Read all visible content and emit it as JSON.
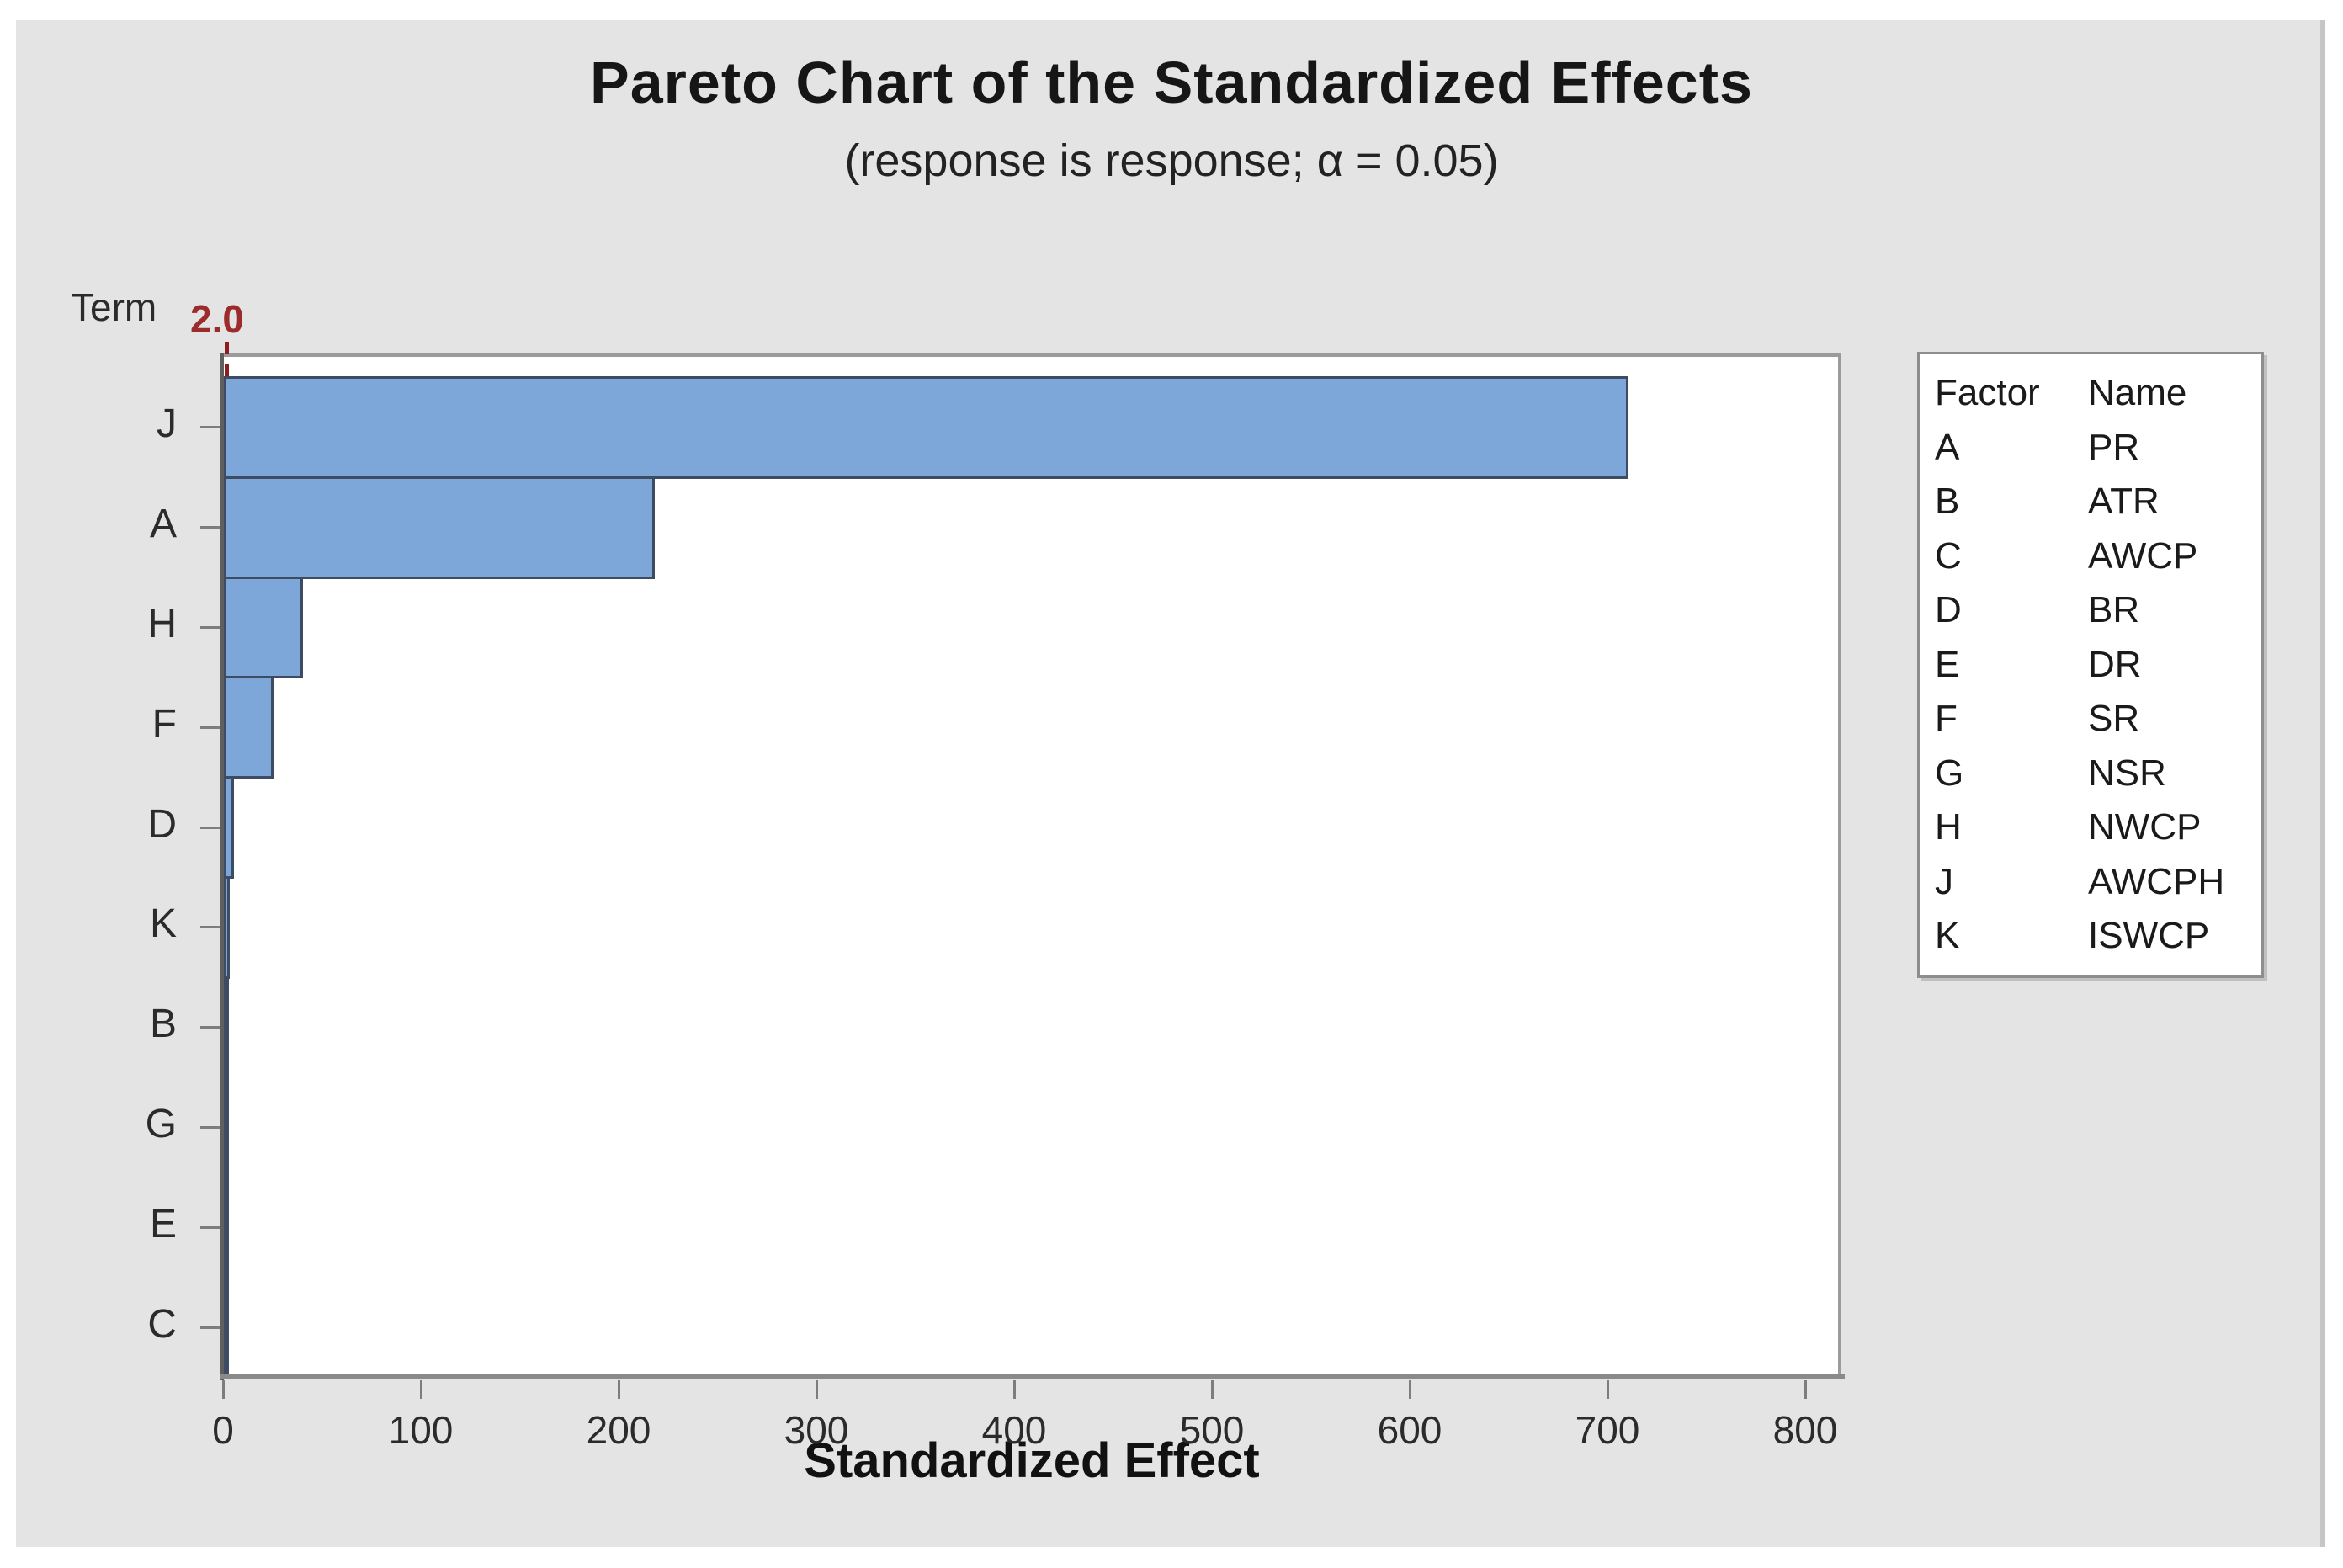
{
  "figure": {
    "title": "Pareto Chart of the Standardized Effects",
    "subtitle": "(response is response; α = 0.05)",
    "y_axis_title": "Term",
    "x_axis_label": "Standardized Effect",
    "reference_line_label": "2.0"
  },
  "chart_data": {
    "type": "bar",
    "orientation": "horizontal",
    "title": "Pareto Chart of the Standardized Effects",
    "subtitle": "(response is response; α = 0.05)",
    "xlabel": "Standardized Effect",
    "ylabel": "Term",
    "categories": [
      "J",
      "A",
      "H",
      "F",
      "D",
      "K",
      "B",
      "G",
      "E",
      "C"
    ],
    "values": [
      710,
      218,
      40,
      25,
      5,
      3,
      1.5,
      1.2,
      0.8,
      0.5
    ],
    "xlim": [
      0,
      818
    ],
    "x_ticks": [
      0,
      100,
      200,
      300,
      400,
      500,
      600,
      700,
      800
    ],
    "reference_line": 2.0,
    "grid": "off",
    "legend_position": "right",
    "colors": {
      "bar_fill": "#7da7d9",
      "bar_border": "#3d4c63",
      "reference_line": "#8b1f1f",
      "reference_label": "#9c2b2b",
      "panel_background": "#e5e4e4",
      "plot_background": "#ffffff"
    }
  },
  "legend": {
    "headers": [
      "Factor",
      "Name"
    ],
    "rows": [
      {
        "factor": "A",
        "name": "PR"
      },
      {
        "factor": "B",
        "name": "ATR"
      },
      {
        "factor": "C",
        "name": "AWCP"
      },
      {
        "factor": "D",
        "name": "BR"
      },
      {
        "factor": "E",
        "name": "DR"
      },
      {
        "factor": "F",
        "name": "SR"
      },
      {
        "factor": "G",
        "name": "NSR"
      },
      {
        "factor": "H",
        "name": "NWCP"
      },
      {
        "factor": "J",
        "name": "AWCPH"
      },
      {
        "factor": "K",
        "name": "ISWCP"
      }
    ]
  }
}
